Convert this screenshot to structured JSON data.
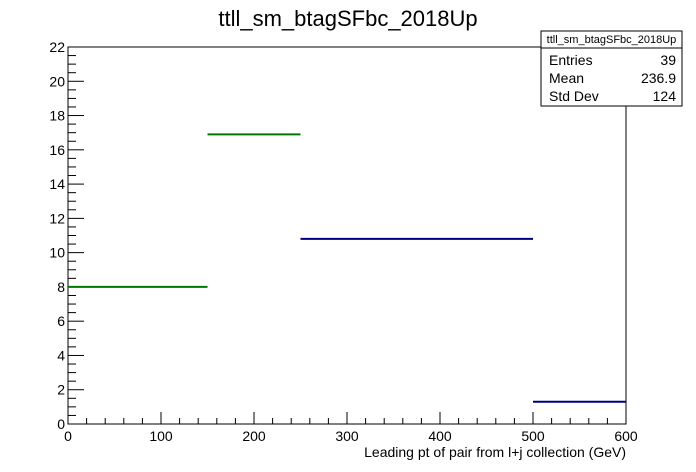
{
  "chart_data": {
    "type": "histogram",
    "title": "ttll_sm_btagSFbc_2018Up",
    "xlabel": "Leading pt of pair from l+j collection (GeV)",
    "ylabel": "",
    "xlim": [
      0,
      600
    ],
    "ylim": [
      0,
      22
    ],
    "x_ticks": [
      0,
      100,
      200,
      300,
      400,
      500,
      600
    ],
    "y_ticks": [
      0,
      2,
      4,
      6,
      8,
      10,
      12,
      14,
      16,
      18,
      20,
      22
    ],
    "bins": [
      {
        "x_low": 0,
        "x_high": 150,
        "value": 8.0,
        "color": "#007700"
      },
      {
        "x_low": 150,
        "x_high": 250,
        "value": 16.9,
        "color": "#007700"
      },
      {
        "x_low": 250,
        "x_high": 500,
        "value": 10.8,
        "color": "#00007f"
      },
      {
        "x_low": 500,
        "x_high": 600,
        "value": 1.3,
        "color": "#00007f"
      }
    ],
    "stats_box": {
      "title": "ttll_sm_btagSFbc_2018Up",
      "rows": [
        {
          "label": "Entries",
          "value": "39"
        },
        {
          "label": "Mean",
          "value": "236.9"
        },
        {
          "label": "Std Dev",
          "value": "124"
        }
      ]
    }
  }
}
